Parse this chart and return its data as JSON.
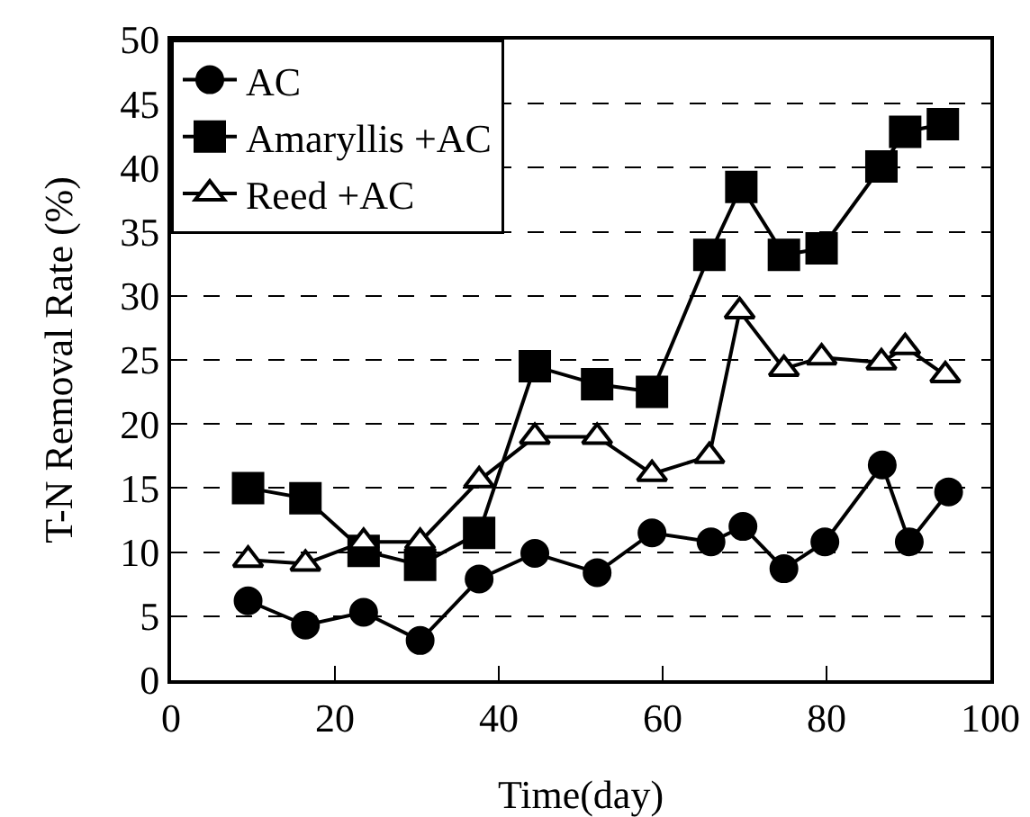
{
  "chart_data": {
    "type": "line",
    "xlabel": "Time(day)",
    "ylabel": "T-N Removal Rate (%)",
    "xlim": [
      0,
      100
    ],
    "xticks": [
      0,
      20,
      40,
      60,
      80,
      100
    ],
    "ylim": [
      0,
      50
    ],
    "yticks": [
      0,
      5,
      10,
      15,
      20,
      25,
      30,
      35,
      40,
      45,
      50
    ],
    "grid": "y",
    "legend": "top left",
    "line_style": "solid",
    "series": [
      {
        "name": "AC",
        "color": "#000000",
        "marker": "circle",
        "x": [
          9.4,
          16.4,
          23.5,
          30.4,
          37.6,
          44.4,
          52,
          58.7,
          65.9,
          69.8,
          74.8,
          79.8,
          86.8,
          90.1,
          94.9
        ],
        "values": [
          6.2,
          4.3,
          5.3,
          3.1,
          7.9,
          9.9,
          8.4,
          11.5,
          10.8,
          12.0,
          8.7,
          10.8,
          16.8,
          10.8,
          14.7
        ]
      },
      {
        "name": "Amaryllis +AC",
        "color": "#000000",
        "marker": "square",
        "x": [
          9.4,
          16.4,
          23.5,
          30.4,
          37.6,
          44.4,
          52,
          58.7,
          65.7,
          69.6,
          74.8,
          79.4,
          86.7,
          89.6,
          94.2
        ],
        "values": [
          15.0,
          14.2,
          10.1,
          9.0,
          11.5,
          24.5,
          23.1,
          22.5,
          33.2,
          38.5,
          33.2,
          33.7,
          40.1,
          42.8,
          43.4
        ]
      },
      {
        "name": "Reed +AC",
        "color": "#000000",
        "marker": "triangle",
        "x": [
          9.4,
          16.4,
          23.5,
          30.4,
          37.6,
          44.4,
          52,
          58.7,
          65.7,
          69.4,
          74.8,
          79.4,
          86.7,
          89.6,
          94.5
        ],
        "values": [
          9.4,
          9.1,
          10.8,
          10.8,
          15.6,
          19.0,
          19.0,
          16.1,
          17.5,
          28.8,
          24.3,
          25.2,
          24.8,
          26.0,
          23.8
        ]
      }
    ]
  }
}
